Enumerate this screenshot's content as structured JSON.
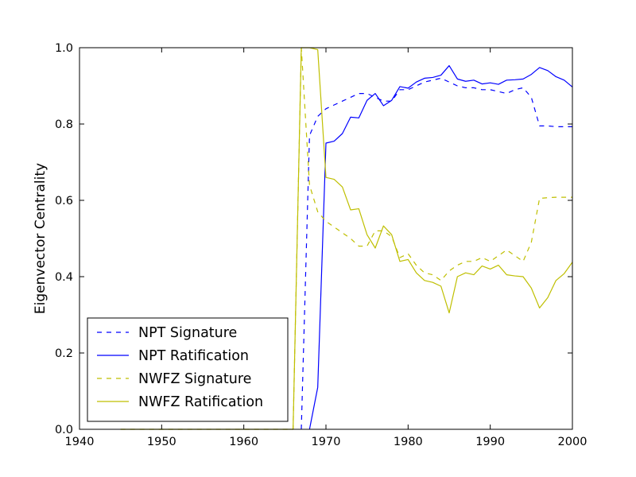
{
  "chart_data": {
    "type": "line",
    "title": "",
    "xlabel": "",
    "ylabel": "Eigenvector Centrality",
    "xlim": [
      1940,
      2000
    ],
    "ylim": [
      0.0,
      1.0
    ],
    "xticks": [
      "1940",
      "1950",
      "1960",
      "1970",
      "1980",
      "1990",
      "2000"
    ],
    "yticks": [
      "0.0",
      "0.2",
      "0.4",
      "0.6",
      "0.8",
      "1.0"
    ],
    "grid": false,
    "legend_position": "lower-left",
    "series": [
      {
        "name": "NPT Signature",
        "color": "#0000ff",
        "dash": "dashed",
        "points": [
          [
            1967,
            0.0
          ],
          [
            1968,
            0.77
          ],
          [
            1969,
            0.82
          ],
          [
            1970,
            0.84
          ],
          [
            1971,
            0.85
          ],
          [
            1972,
            0.86
          ],
          [
            1973,
            0.87
          ],
          [
            1974,
            0.88
          ],
          [
            1975,
            0.88
          ],
          [
            1976,
            0.87
          ],
          [
            1977,
            0.86
          ],
          [
            1978,
            0.86
          ],
          [
            1979,
            0.89
          ],
          [
            1980,
            0.89
          ],
          [
            1981,
            0.9
          ],
          [
            1982,
            0.91
          ],
          [
            1983,
            0.915
          ],
          [
            1984,
            0.92
          ],
          [
            1985,
            0.91
          ],
          [
            1986,
            0.9
          ],
          [
            1987,
            0.895
          ],
          [
            1988,
            0.895
          ],
          [
            1989,
            0.89
          ],
          [
            1990,
            0.89
          ],
          [
            1991,
            0.885
          ],
          [
            1992,
            0.88
          ],
          [
            1993,
            0.89
          ],
          [
            1994,
            0.895
          ],
          [
            1995,
            0.87
          ],
          [
            1996,
            0.795
          ],
          [
            1997,
            0.795
          ],
          [
            1998,
            0.793
          ],
          [
            1999,
            0.793
          ],
          [
            2000,
            0.793
          ]
        ]
      },
      {
        "name": "NPT Ratification",
        "color": "#0000ff",
        "dash": "solid",
        "points": [
          [
            1968,
            0.0
          ],
          [
            1969,
            0.11
          ],
          [
            1970,
            0.75
          ],
          [
            1971,
            0.755
          ],
          [
            1972,
            0.775
          ],
          [
            1973,
            0.818
          ],
          [
            1974,
            0.816
          ],
          [
            1975,
            0.862
          ],
          [
            1976,
            0.88
          ],
          [
            1977,
            0.848
          ],
          [
            1978,
            0.862
          ],
          [
            1979,
            0.898
          ],
          [
            1980,
            0.894
          ],
          [
            1981,
            0.91
          ],
          [
            1982,
            0.92
          ],
          [
            1983,
            0.922
          ],
          [
            1984,
            0.928
          ],
          [
            1985,
            0.953
          ],
          [
            1986,
            0.918
          ],
          [
            1987,
            0.912
          ],
          [
            1988,
            0.915
          ],
          [
            1989,
            0.905
          ],
          [
            1990,
            0.908
          ],
          [
            1991,
            0.904
          ],
          [
            1992,
            0.915
          ],
          [
            1993,
            0.916
          ],
          [
            1994,
            0.918
          ],
          [
            1995,
            0.93
          ],
          [
            1996,
            0.948
          ],
          [
            1997,
            0.94
          ],
          [
            1998,
            0.924
          ],
          [
            1999,
            0.915
          ],
          [
            2000,
            0.897
          ]
        ]
      },
      {
        "name": "NWFZ Signature",
        "color": "#bfbf00",
        "dash": "dashed",
        "points": [
          [
            1945,
            0.0
          ],
          [
            1966,
            0.0
          ],
          [
            1967,
            1.0
          ],
          [
            1968,
            0.64
          ],
          [
            1969,
            0.57
          ],
          [
            1970,
            0.545
          ],
          [
            1971,
            0.53
          ],
          [
            1972,
            0.515
          ],
          [
            1973,
            0.5
          ],
          [
            1974,
            0.48
          ],
          [
            1975,
            0.48
          ],
          [
            1976,
            0.52
          ],
          [
            1977,
            0.52
          ],
          [
            1978,
            0.505
          ],
          [
            1979,
            0.45
          ],
          [
            1980,
            0.46
          ],
          [
            1981,
            0.43
          ],
          [
            1982,
            0.41
          ],
          [
            1983,
            0.405
          ],
          [
            1984,
            0.39
          ],
          [
            1985,
            0.415
          ],
          [
            1986,
            0.43
          ],
          [
            1987,
            0.44
          ],
          [
            1988,
            0.44
          ],
          [
            1989,
            0.45
          ],
          [
            1990,
            0.44
          ],
          [
            1991,
            0.455
          ],
          [
            1992,
            0.47
          ],
          [
            1993,
            0.455
          ],
          [
            1994,
            0.44
          ],
          [
            1995,
            0.49
          ],
          [
            1996,
            0.605
          ],
          [
            1997,
            0.607
          ],
          [
            1998,
            0.608
          ],
          [
            1999,
            0.608
          ],
          [
            2000,
            0.608
          ]
        ]
      },
      {
        "name": "NWFZ Ratification",
        "color": "#bfbf00",
        "dash": "solid",
        "points": [
          [
            1945,
            0.0
          ],
          [
            1966,
            0.0
          ],
          [
            1967,
            1.0
          ],
          [
            1968,
            1.0
          ],
          [
            1969,
            0.995
          ],
          [
            1970,
            0.66
          ],
          [
            1971,
            0.655
          ],
          [
            1972,
            0.635
          ],
          [
            1973,
            0.575
          ],
          [
            1974,
            0.578
          ],
          [
            1975,
            0.51
          ],
          [
            1976,
            0.475
          ],
          [
            1977,
            0.533
          ],
          [
            1978,
            0.51
          ],
          [
            1979,
            0.44
          ],
          [
            1980,
            0.445
          ],
          [
            1981,
            0.41
          ],
          [
            1982,
            0.39
          ],
          [
            1983,
            0.385
          ],
          [
            1984,
            0.375
          ],
          [
            1985,
            0.305
          ],
          [
            1986,
            0.4
          ],
          [
            1987,
            0.41
          ],
          [
            1988,
            0.405
          ],
          [
            1989,
            0.428
          ],
          [
            1990,
            0.42
          ],
          [
            1991,
            0.43
          ],
          [
            1992,
            0.405
          ],
          [
            1993,
            0.402
          ],
          [
            1994,
            0.4
          ],
          [
            1995,
            0.37
          ],
          [
            1996,
            0.318
          ],
          [
            1997,
            0.345
          ],
          [
            1998,
            0.39
          ],
          [
            1999,
            0.408
          ],
          [
            2000,
            0.438
          ]
        ]
      }
    ]
  }
}
